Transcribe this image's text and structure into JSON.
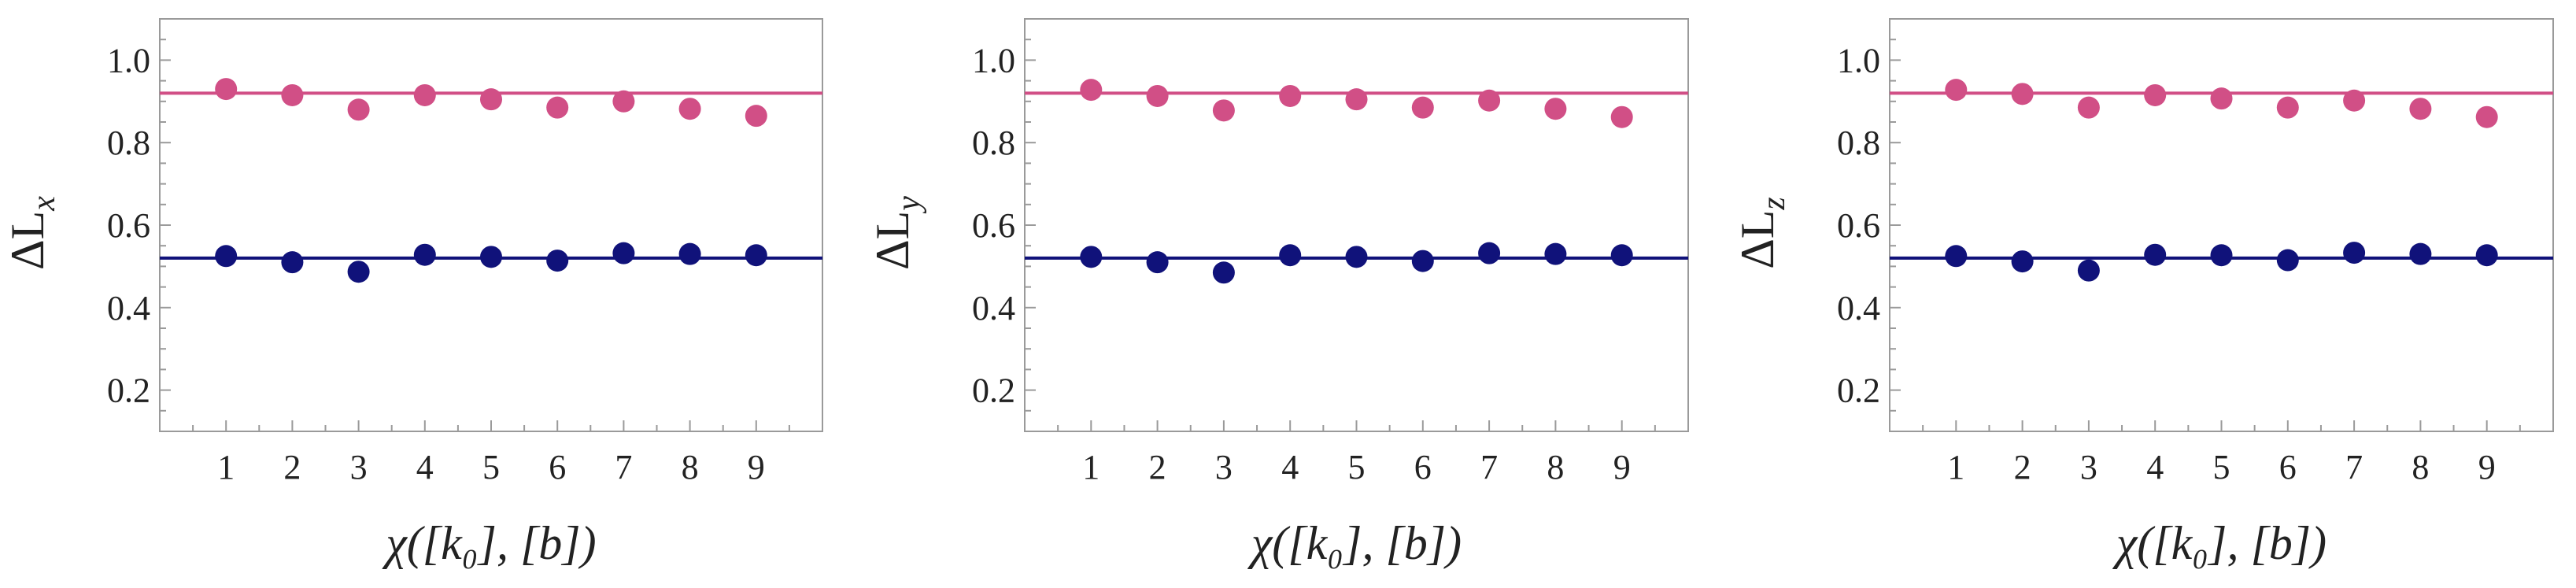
{
  "figure": {
    "panels": 3
  },
  "chart_data": [
    {
      "type": "scatter",
      "title": "",
      "xlabel": "χ([k₀], [b])",
      "ylabel": "ΔL_x",
      "ylabel_main": "ΔL",
      "ylabel_sub": "x",
      "xlim": [
        0,
        10
      ],
      "ylim": [
        0.1,
        1.1
      ],
      "xticks": [
        1,
        2,
        3,
        4,
        5,
        6,
        7,
        8,
        9
      ],
      "yticks": [
        0.2,
        0.4,
        0.6,
        0.8,
        1.0
      ],
      "ytick_labels": [
        "0.2",
        "0.4",
        "0.6",
        "0.8",
        "1.0"
      ],
      "grid": false,
      "series": [
        {
          "color": "#d14f86",
          "x": [
            1,
            2,
            3,
            4,
            5,
            6,
            7,
            8,
            9
          ],
          "y": [
            0.93,
            0.915,
            0.88,
            0.915,
            0.905,
            0.885,
            0.9,
            0.882,
            0.865
          ],
          "reference_line": 0.92
        },
        {
          "color": "#10127a",
          "x": [
            1,
            2,
            3,
            4,
            5,
            6,
            7,
            8,
            9
          ],
          "y": [
            0.525,
            0.51,
            0.487,
            0.528,
            0.523,
            0.514,
            0.532,
            0.53,
            0.527
          ],
          "reference_line": 0.52
        }
      ]
    },
    {
      "type": "scatter",
      "title": "",
      "xlabel": "χ([k₀], [b])",
      "ylabel": "ΔL_y",
      "ylabel_main": "ΔL",
      "ylabel_sub": "y",
      "xlim": [
        0,
        10
      ],
      "ylim": [
        0.1,
        1.1
      ],
      "xticks": [
        1,
        2,
        3,
        4,
        5,
        6,
        7,
        8,
        9
      ],
      "yticks": [
        0.2,
        0.4,
        0.6,
        0.8,
        1.0
      ],
      "ytick_labels": [
        "0.2",
        "0.4",
        "0.6",
        "0.8",
        "1.0"
      ],
      "grid": false,
      "series": [
        {
          "color": "#d14f86",
          "x": [
            1,
            2,
            3,
            4,
            5,
            6,
            7,
            8,
            9
          ],
          "y": [
            0.928,
            0.913,
            0.878,
            0.913,
            0.905,
            0.885,
            0.902,
            0.882,
            0.862
          ],
          "reference_line": 0.92
        },
        {
          "color": "#10127a",
          "x": [
            1,
            2,
            3,
            4,
            5,
            6,
            7,
            8,
            9
          ],
          "y": [
            0.523,
            0.51,
            0.485,
            0.527,
            0.523,
            0.513,
            0.532,
            0.53,
            0.527
          ],
          "reference_line": 0.52
        }
      ]
    },
    {
      "type": "scatter",
      "title": "",
      "xlabel": "χ([k₀], [b])",
      "ylabel": "ΔL_z",
      "ylabel_main": "ΔL",
      "ylabel_sub": "z",
      "xlim": [
        0,
        10
      ],
      "ylim": [
        0.1,
        1.1
      ],
      "xticks": [
        1,
        2,
        3,
        4,
        5,
        6,
        7,
        8,
        9
      ],
      "yticks": [
        0.2,
        0.4,
        0.6,
        0.8,
        1.0
      ],
      "ytick_labels": [
        "0.2",
        "0.4",
        "0.6",
        "0.8",
        "1.0"
      ],
      "grid": false,
      "series": [
        {
          "color": "#d14f86",
          "x": [
            1,
            2,
            3,
            4,
            5,
            6,
            7,
            8,
            9
          ],
          "y": [
            0.928,
            0.918,
            0.885,
            0.915,
            0.907,
            0.885,
            0.902,
            0.882,
            0.862
          ],
          "reference_line": 0.92
        },
        {
          "color": "#10127a",
          "x": [
            1,
            2,
            3,
            4,
            5,
            6,
            7,
            8,
            9
          ],
          "y": [
            0.525,
            0.512,
            0.49,
            0.528,
            0.527,
            0.515,
            0.533,
            0.53,
            0.527
          ],
          "reference_line": 0.52
        }
      ]
    }
  ]
}
